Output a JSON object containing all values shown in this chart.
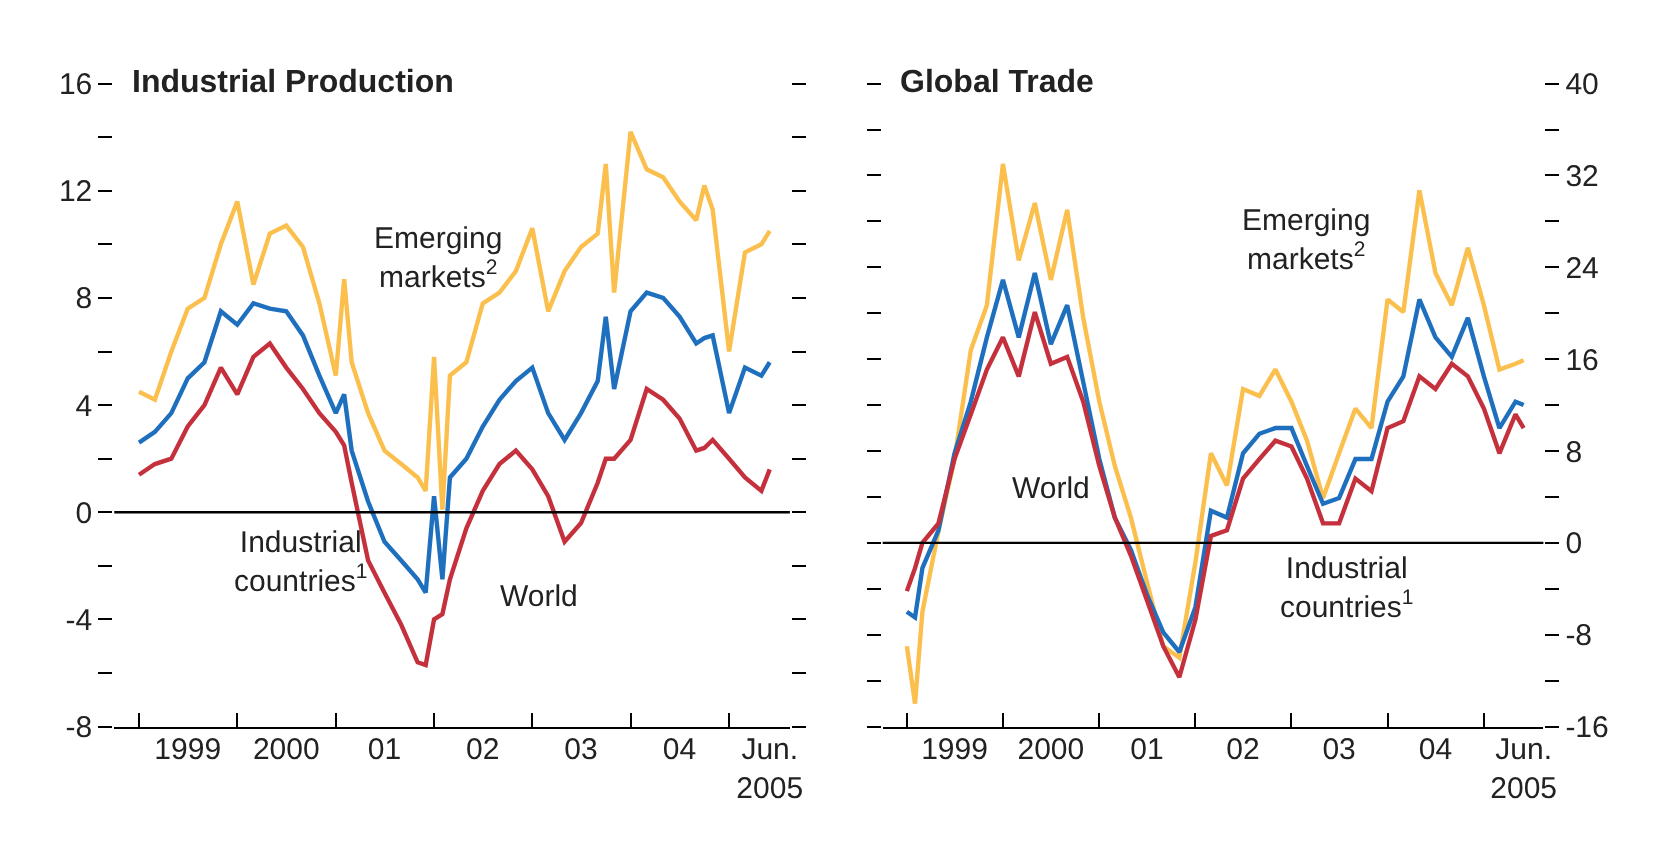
{
  "chart_data": [
    {
      "type": "line",
      "title": "Industrial Production",
      "x": [
        "1999-01",
        "1999-03",
        "1999-05",
        "1999-07",
        "1999-09",
        "1999-11",
        "2000-01",
        "2000-03",
        "2000-05",
        "2000-07",
        "2000-09",
        "2000-11",
        "2001-01",
        "2001-02",
        "2001-03",
        "2001-05",
        "2001-07",
        "2001-09",
        "2001-11",
        "2001-12",
        "2002-01",
        "2002-02",
        "2002-03",
        "2002-05",
        "2002-07",
        "2002-09",
        "2002-11",
        "2003-01",
        "2003-03",
        "2003-05",
        "2003-07",
        "2003-09",
        "2003-10",
        "2003-11",
        "2004-01",
        "2004-03",
        "2004-05",
        "2004-07",
        "2004-09",
        "2004-10",
        "2004-11",
        "2005-01",
        "2005-03",
        "2005-05",
        "2005-06"
      ],
      "series": [
        {
          "color": "#fbbf4e",
          "values": [
            4.5,
            4.2,
            6,
            7.6,
            8,
            10,
            11.6,
            8.5,
            10.4,
            10.7,
            9.9,
            7.8,
            5.1,
            8.7,
            5.6,
            3.7,
            2.3,
            1.8,
            1.3,
            0.8,
            5.8,
            0.1,
            5.1,
            5.6,
            7.8,
            8.2,
            9,
            10.6,
            7.5,
            9,
            9.9,
            10.4,
            13,
            8.2,
            14.2,
            12.8,
            12.5,
            11.6,
            10.9,
            12.2,
            11.3,
            6,
            9.7,
            10,
            10.5
          ]
        },
        {
          "color": "#1f6fbf",
          "values": [
            2.6,
            3,
            3.7,
            5,
            5.6,
            7.5,
            7,
            7.8,
            7.6,
            7.5,
            6.6,
            5.1,
            3.7,
            4.4,
            2.3,
            0.4,
            -1.1,
            -1.8,
            -2.5,
            -3,
            0.6,
            -2.5,
            1.3,
            2,
            3.2,
            4.2,
            4.9,
            5.4,
            3.7,
            2.7,
            3.7,
            4.9,
            7.3,
            4.6,
            7.5,
            8.2,
            8,
            7.3,
            6.3,
            6.5,
            6.6,
            3.7,
            5.4,
            5.1,
            5.6
          ]
        },
        {
          "color": "#c4303c",
          "values": [
            1.4,
            1.8,
            2,
            3.2,
            4,
            5.4,
            4.4,
            5.8,
            6.3,
            5.4,
            4.6,
            3.7,
            3,
            2.5,
            1.1,
            -1.8,
            -3,
            -4.2,
            -5.6,
            -5.7,
            -4,
            -3.8,
            -2.5,
            -0.6,
            0.8,
            1.8,
            2.3,
            1.6,
            0.6,
            -1.1,
            -0.4,
            1.1,
            2,
            2,
            2.7,
            4.6,
            4.2,
            3.5,
            2.3,
            2.4,
            2.7,
            2,
            1.3,
            0.8,
            1.6
          ]
        }
      ],
      "xlim": [
        "1998-10-01",
        "2005-08-15"
      ],
      "xticks": [
        {
          "value": "1999-01-01",
          "label": null
        },
        {
          "value": "1999-07-01",
          "label": "1999"
        },
        {
          "value": "2000-01-01",
          "label": null
        },
        {
          "value": "2000-07-01",
          "label": "2000"
        },
        {
          "value": "2001-01-01",
          "label": null
        },
        {
          "value": "2001-07-01",
          "label": "01"
        },
        {
          "value": "2002-01-01",
          "label": null
        },
        {
          "value": "2002-07-01",
          "label": "02"
        },
        {
          "value": "2003-01-01",
          "label": null
        },
        {
          "value": "2003-07-01",
          "label": "03"
        },
        {
          "value": "2004-01-01",
          "label": null
        },
        {
          "value": "2004-07-01",
          "label": "04"
        },
        {
          "value": "2005-01-01",
          "label": null
        },
        {
          "value": "2005-06-01",
          "label": "Jun.\n2005"
        }
      ],
      "ylim": [
        -8,
        16
      ],
      "yticks": [
        -8,
        {
          "value": -6,
          "label": null
        },
        -4,
        {
          "value": -2,
          "label": null
        },
        0,
        {
          "value": 2,
          "label": null
        },
        4,
        {
          "value": 6,
          "label": null
        },
        8,
        {
          "value": 10,
          "label": null
        },
        12,
        {
          "value": 14,
          "label": null
        },
        16
      ],
      "ref_lines": [
        {
          "axis": "y",
          "value": 0,
          "color": "#000000"
        }
      ],
      "annotations": [
        "Emerging\nmarkets$^{2}$",
        "Industrial\ncountries$^{1}$",
        "World"
      ]
    },
    {
      "type": "line",
      "title": "Global Trade",
      "x": [
        "1999-01",
        "1999-02",
        "1999-03",
        "1999-05",
        "1999-07",
        "1999-09",
        "1999-11",
        "2000-01",
        "2000-03",
        "2000-05",
        "2000-07",
        "2000-09",
        "2000-11",
        "2001-01",
        "2001-03",
        "2001-05",
        "2001-07",
        "2001-09",
        "2001-11",
        "2002-01",
        "2002-03",
        "2002-05",
        "2002-07",
        "2002-09",
        "2002-11",
        "2003-01",
        "2003-03",
        "2003-05",
        "2003-07",
        "2003-09",
        "2003-11",
        "2004-01",
        "2004-03",
        "2004-05",
        "2004-07",
        "2004-09",
        "2004-11",
        "2005-01",
        "2005-03",
        "2005-05",
        "2005-06"
      ],
      "series": [
        {
          "color": "#fbbf4e",
          "axis": "y2",
          "values": [
            -9,
            -14,
            -6,
            1,
            7.3,
            16.8,
            20.7,
            33,
            24.6,
            29.6,
            22.9,
            29,
            19.6,
            12.3,
            6.7,
            2.2,
            -3.4,
            -9,
            -10,
            -1.7,
            7.8,
            5,
            13.4,
            12.8,
            15.1,
            12.3,
            8.9,
            3.9,
            7.8,
            11.7,
            10,
            21.2,
            20.1,
            30.7,
            23.5,
            20.7,
            25.7,
            20.7,
            15.1,
            15.6,
            15.9
          ]
        },
        {
          "color": "#1f6fbf",
          "axis": "y2",
          "values": [
            -6,
            -6.5,
            -2.2,
            1.1,
            7.8,
            12.3,
            17.9,
            22.9,
            17.9,
            23.5,
            17.3,
            20.7,
            14,
            7.3,
            2.2,
            -0.6,
            -4.5,
            -7.8,
            -9.5,
            -5.6,
            2.8,
            2.2,
            7.8,
            9.5,
            10,
            10,
            6.7,
            3.4,
            3.9,
            7.3,
            7.3,
            12.3,
            14.5,
            21.2,
            17.9,
            16.2,
            19.6,
            14.5,
            10,
            12.3,
            12
          ]
        },
        {
          "color": "#c4303c",
          "axis": "y2",
          "values": [
            -4.2,
            -2.2,
            0,
            1.7,
            7.3,
            11.2,
            15.1,
            17.9,
            14.5,
            20.1,
            15.6,
            16.2,
            12.3,
            6.7,
            2.2,
            -1.1,
            -5,
            -9,
            -11.7,
            -6.7,
            0.6,
            1.1,
            5.6,
            7.3,
            8.9,
            8.4,
            5.6,
            1.7,
            1.7,
            5.6,
            4.5,
            10,
            10.6,
            14.5,
            13.4,
            15.6,
            14.5,
            11.7,
            7.8,
            11.2,
            10
          ]
        }
      ],
      "xlim": [
        "1998-10-01",
        "2005-08-15"
      ],
      "xticks": [
        {
          "value": "1999-01-01",
          "label": null
        },
        {
          "value": "1999-07-01",
          "label": "1999"
        },
        {
          "value": "2000-01-01",
          "label": null
        },
        {
          "value": "2000-07-01",
          "label": "2000"
        },
        {
          "value": "2001-01-01",
          "label": null
        },
        {
          "value": "2001-07-01",
          "label": "01"
        },
        {
          "value": "2002-01-01",
          "label": null
        },
        {
          "value": "2002-07-01",
          "label": "02"
        },
        {
          "value": "2003-01-01",
          "label": null
        },
        {
          "value": "2003-07-01",
          "label": "03"
        },
        {
          "value": "2004-01-01",
          "label": null
        },
        {
          "value": "2004-07-01",
          "label": "04"
        },
        {
          "value": "2005-01-01",
          "label": null
        },
        {
          "value": "2005-06-01",
          "label": "Jun.\n2005"
        }
      ],
      "y2lim": [
        -16,
        40
      ],
      "y2ticks": [
        -16,
        {
          "value": -12,
          "label": null
        },
        -8,
        {
          "value": -4,
          "label": null
        },
        0,
        {
          "value": 4,
          "label": null
        },
        8,
        {
          "value": 12,
          "label": null
        },
        16,
        {
          "value": 20,
          "label": null
        },
        24,
        {
          "value": 28,
          "label": null
        },
        32,
        {
          "value": 36,
          "label": null
        },
        40
      ],
      "ref_lines": [
        {
          "axis": "y2",
          "value": 0,
          "color": "#000000"
        }
      ],
      "annotations": [
        "Emerging\nmarkets$^{2}$",
        "World",
        "Industrial\ncountries$^{1}$"
      ]
    }
  ]
}
